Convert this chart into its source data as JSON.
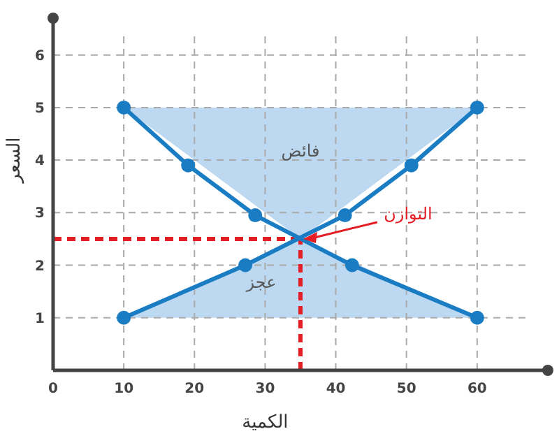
{
  "chart_data": {
    "type": "line",
    "xlabel": "الكمية",
    "ylabel": "السعر",
    "xlim": [
      0,
      70
    ],
    "ylim": [
      0,
      6.7
    ],
    "xticks": [
      0,
      10,
      20,
      30,
      40,
      50,
      60
    ],
    "yticks": [
      1,
      2,
      3,
      4,
      5,
      6
    ],
    "grid": true,
    "marker": "circle",
    "line_style": "solid",
    "series": [
      {
        "color": "#1a7dc4",
        "x": [
          10,
          19.1,
          28.6,
          42.3,
          60
        ],
        "values": [
          5,
          3.9,
          2.95,
          2,
          1
        ]
      },
      {
        "color": "#1a7dc4",
        "x": [
          10,
          27.2,
          41.3,
          50.7,
          60
        ],
        "values": [
          1,
          2,
          2.95,
          3.9,
          5
        ]
      }
    ],
    "ref_lines": [
      {
        "axis": "y",
        "value": 2.5,
        "color": "#e31e24",
        "line_style": "dashed"
      },
      {
        "axis": "x",
        "value": 35,
        "color": "#e31e24",
        "line_style": "dashed"
      }
    ],
    "annotations": [
      "فائض",
      "عجز",
      {
        "text": "التوازن",
        "x": 35,
        "y": 2.5
      }
    ]
  }
}
